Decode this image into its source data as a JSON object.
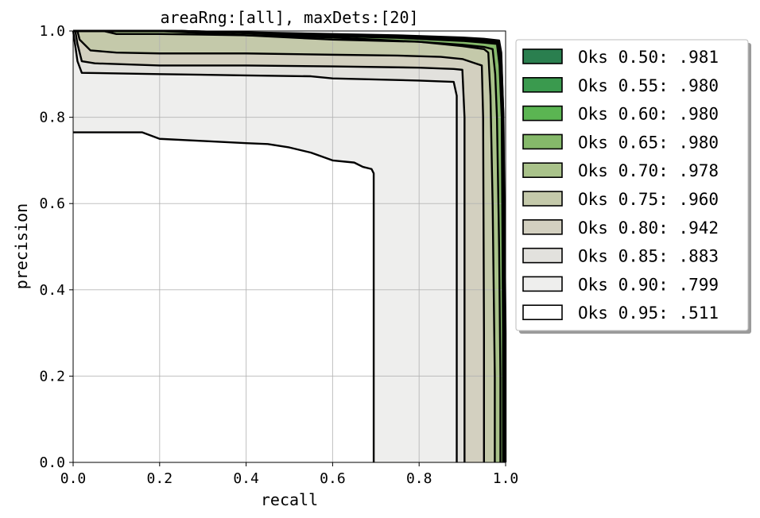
{
  "chart_data": {
    "type": "area",
    "title": "areaRng:[all], maxDets:[20]",
    "xlabel": "recall",
    "ylabel": "precision",
    "xlim": [
      0.0,
      1.0
    ],
    "ylim": [
      0.0,
      1.0
    ],
    "xticks": [
      "0.0",
      "0.2",
      "0.4",
      "0.6",
      "0.8",
      "1.0"
    ],
    "yticks": [
      "0.0",
      "0.2",
      "0.4",
      "0.6",
      "0.8",
      "1.0"
    ],
    "grid": true,
    "legend_position": "outside right",
    "series": [
      {
        "name": "Oks 0.50: .981",
        "color": "#2a7f4f",
        "x": [
          0,
          0.25,
          0.5,
          0.75,
          0.9,
          0.95,
          0.985,
          0.99,
          0.995,
          1.0,
          1.0
        ],
        "y": [
          1,
          1,
          0.995,
          0.99,
          0.985,
          0.982,
          0.978,
          0.95,
          0.8,
          0.3,
          0
        ]
      },
      {
        "name": "Oks 0.55: .980",
        "color": "#3a9a4e",
        "x": [
          0,
          0.25,
          0.5,
          0.75,
          0.9,
          0.95,
          0.985,
          0.99,
          0.995,
          0.998,
          0.998
        ],
        "y": [
          1,
          1,
          0.994,
          0.988,
          0.983,
          0.98,
          0.976,
          0.94,
          0.8,
          0.3,
          0
        ]
      },
      {
        "name": "Oks 0.60: .980",
        "color": "#5bb552",
        "x": [
          0,
          0.25,
          0.5,
          0.75,
          0.9,
          0.95,
          0.982,
          0.988,
          0.993,
          0.996,
          0.996
        ],
        "y": [
          1,
          1,
          0.993,
          0.987,
          0.98,
          0.977,
          0.973,
          0.93,
          0.8,
          0.3,
          0
        ]
      },
      {
        "name": "Oks 0.65: .980",
        "color": "#85b96a",
        "x": [
          0,
          0.25,
          0.5,
          0.75,
          0.9,
          0.95,
          0.98,
          0.986,
          0.991,
          0.994,
          0.994
        ],
        "y": [
          1,
          1,
          0.991,
          0.984,
          0.977,
          0.973,
          0.97,
          0.92,
          0.8,
          0.3,
          0
        ]
      },
      {
        "name": "Oks 0.70: .978",
        "color": "#a9c28a",
        "x": [
          0,
          0.2,
          0.4,
          0.6,
          0.8,
          0.9,
          0.95,
          0.97,
          0.976,
          0.98,
          0.985,
          0.988,
          0.988
        ],
        "y": [
          1,
          1,
          0.99,
          0.985,
          0.975,
          0.968,
          0.963,
          0.958,
          0.9,
          0.8,
          0.5,
          0.2,
          0
        ]
      },
      {
        "name": "Oks 0.75: .960",
        "color": "#c4c9aa",
        "x": [
          0.07,
          0.1,
          0.2,
          0.4,
          0.6,
          0.8,
          0.9,
          0.95,
          0.96,
          0.965,
          0.97,
          0.975,
          0.975
        ],
        "y": [
          1,
          0.993,
          0.993,
          0.99,
          0.98,
          0.975,
          0.965,
          0.958,
          0.95,
          0.85,
          0.6,
          0.2,
          0
        ]
      },
      {
        "name": "Oks 0.80: .942",
        "color": "#d3d0c0",
        "x": [
          0.01,
          0.015,
          0.04,
          0.1,
          0.2,
          0.4,
          0.6,
          0.75,
          0.85,
          0.9,
          0.93,
          0.945,
          0.948,
          0.95,
          0.95
        ],
        "y": [
          1,
          0.98,
          0.955,
          0.95,
          0.948,
          0.948,
          0.945,
          0.943,
          0.94,
          0.935,
          0.925,
          0.92,
          0.8,
          0.3,
          0
        ]
      },
      {
        "name": "Oks 0.85: .883",
        "color": "#e2e1dd",
        "x": [
          0.005,
          0.01,
          0.02,
          0.05,
          0.2,
          0.4,
          0.6,
          0.8,
          0.88,
          0.9,
          0.905,
          0.905
        ],
        "y": [
          1,
          0.97,
          0.93,
          0.925,
          0.92,
          0.92,
          0.918,
          0.915,
          0.912,
          0.91,
          0.8,
          0
        ]
      },
      {
        "name": "Oks 0.90: .799",
        "color": "#eeeeed",
        "x": [
          0,
          0.01,
          0.02,
          0.2,
          0.4,
          0.55,
          0.6,
          0.8,
          0.88,
          0.887,
          0.887
        ],
        "y": [
          1,
          0.93,
          0.903,
          0.9,
          0.897,
          0.895,
          0.89,
          0.885,
          0.882,
          0.85,
          0
        ]
      },
      {
        "name": "Oks 0.95: .511",
        "color": "#ffffff",
        "x": [
          0,
          0.16,
          0.2,
          0.3,
          0.4,
          0.45,
          0.5,
          0.55,
          0.6,
          0.65,
          0.67,
          0.69,
          0.695,
          0.695
        ],
        "y": [
          0.765,
          0.765,
          0.75,
          0.745,
          0.74,
          0.738,
          0.73,
          0.718,
          0.7,
          0.695,
          0.685,
          0.68,
          0.67,
          0
        ]
      }
    ]
  }
}
